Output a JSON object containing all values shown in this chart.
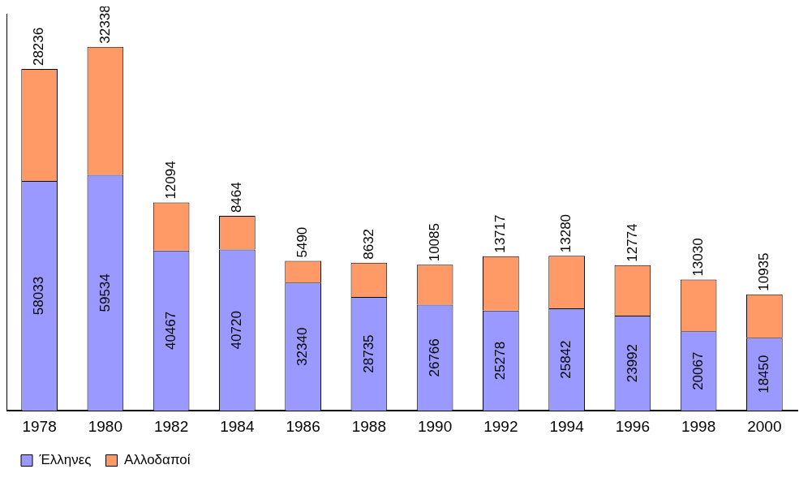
{
  "chart_data": {
    "type": "bar",
    "stacked": true,
    "categories": [
      "1978",
      "1980",
      "1982",
      "1984",
      "1986",
      "1988",
      "1990",
      "1992",
      "1994",
      "1996",
      "1998",
      "2000"
    ],
    "series": [
      {
        "name": "Έλληνες",
        "color": "#9999ff",
        "values": [
          58033,
          59534,
          40467,
          40720,
          32340,
          28735,
          26766,
          25278,
          25842,
          23992,
          20067,
          18450
        ]
      },
      {
        "name": "Αλλοδαποί",
        "color": "#ff9966",
        "values": [
          28236,
          32338,
          12094,
          8464,
          5490,
          8632,
          10085,
          13717,
          13280,
          12774,
          13030,
          10935
        ]
      }
    ],
    "data_labels": true,
    "grid": false,
    "legend": "bottom left",
    "tick_labels": "x"
  }
}
